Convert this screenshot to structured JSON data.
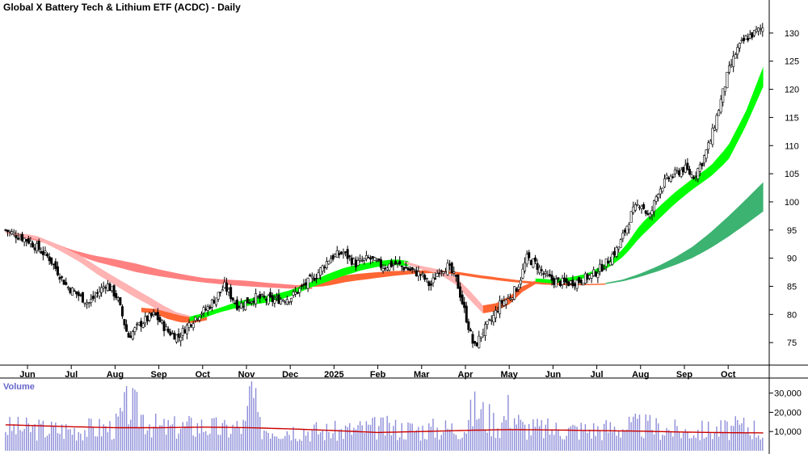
{
  "chart_data": {
    "type": "candlestick",
    "title": "Global X Battery Tech & Lithium ETF (ACDC) - Daily",
    "price_axis": {
      "ticks": [
        75,
        80,
        85,
        90,
        95,
        100,
        105,
        110,
        115,
        120,
        125,
        130
      ],
      "ylim": [
        71,
        133
      ]
    },
    "month_labels": [
      "Jun",
      "Jul",
      "Aug",
      "Sep",
      "Oct",
      "Nov",
      "Dec",
      "2025",
      "Feb",
      "Mar",
      "Apr",
      "May",
      "Jun",
      "Jul",
      "Aug",
      "Sep",
      "Oct"
    ],
    "month_index": [
      0,
      1,
      2,
      3,
      4,
      5,
      6,
      7,
      8,
      9,
      10,
      11,
      12,
      13,
      14,
      15,
      16
    ],
    "close_path": {
      "month_index": [
        -0.5,
        0.05,
        0.5,
        0.9,
        1.4,
        1.8,
        2.05,
        2.3,
        2.6,
        2.9,
        3.2,
        3.45,
        3.65,
        3.9,
        4.1,
        4.3,
        4.5,
        4.8,
        5.2,
        5.6,
        6.0,
        6.3,
        6.6,
        6.9,
        7.2,
        7.5,
        7.8,
        8.1,
        8.4,
        8.7,
        9.0,
        9.2,
        9.4,
        9.6,
        9.8,
        10.0,
        10.2,
        10.4,
        10.6,
        10.8,
        11.0,
        11.2,
        11.4,
        11.6,
        11.8,
        12.0,
        12.3,
        12.6,
        12.9,
        13.2,
        13.5,
        13.8,
        14.0,
        14.2,
        14.4,
        14.6,
        14.8,
        15.0,
        15.2,
        15.4,
        15.6,
        15.8,
        16.0,
        16.2,
        16.4,
        16.6,
        16.8
      ],
      "close": [
        95,
        93,
        90,
        85,
        82,
        85.5,
        83,
        76,
        78.5,
        80,
        77,
        76,
        78,
        80,
        81,
        83,
        85,
        81.5,
        83,
        82.5,
        83,
        85,
        87,
        90,
        91,
        89,
        90,
        88.5,
        89,
        88,
        87,
        85,
        88,
        88.5,
        86,
        80,
        74,
        77,
        79,
        82,
        83,
        85,
        90,
        89,
        87,
        86,
        85.5,
        86,
        87,
        89,
        92,
        98,
        100,
        97,
        102,
        104,
        105,
        106,
        104.5,
        107,
        111,
        117,
        123,
        127,
        129,
        130,
        131
      ]
    },
    "bands": [
      {
        "name": "",
        "color": "#ff8080",
        "month_index": [
          -0.5,
          0.5,
          1.0,
          1.5,
          2.0,
          2.5,
          3.0,
          3.5,
          4.0,
          4.5,
          5.0,
          5.5,
          6.0,
          6.5
        ],
        "upper": [
          95,
          93,
          91.5,
          90.5,
          89.8,
          89,
          88,
          87.2,
          86.5,
          86.2,
          86,
          85.6,
          85.3,
          85
        ],
        "lower": [
          94.5,
          92.5,
          91,
          89.5,
          88.5,
          87.5,
          86.8,
          86.2,
          85.7,
          85.3,
          85,
          84.8,
          84.6,
          84.5
        ]
      },
      {
        "name": "",
        "color": "#ff6633",
        "month_index": [
          6.2,
          6.8,
          7.3,
          7.8,
          8.3,
          8.8,
          9.3,
          9.8,
          10.3,
          10.8,
          11.3,
          11.8,
          12.3,
          12.8,
          13.2
        ],
        "upper": [
          85.2,
          86.3,
          87,
          87.4,
          87.7,
          87.8,
          87.9,
          87.6,
          87,
          86.5,
          86,
          85.7,
          85.5,
          85.4,
          85.5
        ],
        "lower": [
          84.8,
          85,
          85.8,
          86.3,
          86.8,
          87.2,
          87.4,
          87.1,
          86.5,
          86,
          85.6,
          85.3,
          85.2,
          85.2,
          85.3
        ]
      },
      {
        "name": "",
        "color": "#3cb371",
        "month_index": [
          13.2,
          13.6,
          14.0,
          14.4,
          14.8,
          15.2,
          15.6,
          16.0,
          16.4,
          16.8
        ],
        "upper": [
          85.6,
          86.2,
          87.3,
          88.6,
          90.2,
          92.1,
          94.6,
          97.4,
          100.4,
          103.5
        ],
        "lower": [
          85.4,
          85.9,
          86.7,
          87.7,
          88.8,
          90.1,
          91.8,
          93.8,
          96,
          98.3
        ]
      },
      {
        "name": "",
        "color": "#ffb3b3",
        "month_index": [
          -0.5,
          0.2,
          0.7,
          1.2,
          1.6,
          2.0,
          2.4,
          2.8,
          3.1,
          3.4,
          3.7
        ],
        "upper": [
          94.8,
          94,
          92.4,
          90.5,
          88.5,
          86.6,
          84.8,
          83,
          81.6,
          80.4,
          79.8
        ],
        "lower": [
          94.4,
          93.4,
          91.5,
          89.3,
          87.1,
          85.2,
          83.3,
          81.6,
          80.1,
          79.2,
          78.8
        ]
      },
      {
        "name": "",
        "color": "#ff6633",
        "month_index": [
          2.6,
          2.9,
          3.2,
          3.5,
          3.8,
          4.1
        ],
        "upper": [
          81.2,
          81,
          80.4,
          79.8,
          79.4,
          79.6
        ],
        "lower": [
          80.4,
          80.2,
          79.2,
          78.6,
          78.5,
          79
        ]
      },
      {
        "name": "",
        "color": "#00ff00",
        "month_index": [
          3.7,
          4.0,
          4.4,
          4.8,
          5.2,
          5.6,
          6.0,
          6.4,
          6.8,
          7.2,
          7.6,
          8.0,
          8.4,
          8.7
        ],
        "upper": [
          79.6,
          80.2,
          81.2,
          82.3,
          83,
          83.5,
          84.3,
          85.5,
          87,
          88.2,
          89,
          89.5,
          89.8,
          89.5
        ],
        "lower": [
          78.8,
          79.3,
          80.4,
          81.2,
          81.8,
          82.3,
          83.2,
          84.6,
          85.7,
          86.8,
          87.8,
          88.5,
          88.8,
          88.6
        ]
      },
      {
        "name": "",
        "color": "#ffb3b3",
        "month_index": [
          8.6,
          9.0,
          9.4,
          9.8,
          10.1,
          10.4
        ],
        "upper": [
          89.5,
          88.6,
          88,
          86.5,
          84.2,
          81.6
        ],
        "lower": [
          89.1,
          88,
          87.2,
          85.2,
          82.6,
          80.2
        ]
      },
      {
        "name": "",
        "color": "#ff6633",
        "month_index": [
          10.4,
          10.7,
          11.0,
          11.3,
          11.6
        ],
        "upper": [
          81.6,
          82,
          83.2,
          85,
          86
        ],
        "lower": [
          80.2,
          80.6,
          81.8,
          84,
          85.4
        ]
      },
      {
        "name": "",
        "color": "#00ff00",
        "month_index": [
          11.6,
          12.0,
          12.4,
          12.8,
          13.2,
          13.6,
          14.0,
          14.4,
          14.8,
          15.2,
          15.6,
          16.0,
          16.4,
          16.8
        ],
        "upper": [
          86.4,
          86.2,
          86.6,
          87.3,
          89,
          91.6,
          96,
          99,
          101.8,
          104.2,
          106.4,
          110,
          116,
          124
        ],
        "lower": [
          85.8,
          85.5,
          85.9,
          86.6,
          88,
          90.2,
          93.8,
          96.8,
          99.8,
          102.3,
          104.5,
          107.4,
          113.4,
          120.5
        ]
      }
    ],
    "volume": {
      "label": "Volume",
      "ticks": [
        10000,
        20000,
        30000
      ],
      "tick_labels": [
        "10,000",
        "20,000",
        "30,000"
      ],
      "ylim": [
        0,
        37000
      ],
      "profile_month_index": [
        -0.5,
        0.5,
        1.0,
        2.0,
        2.3,
        3.0,
        4.0,
        4.5,
        5.0,
        5.1,
        5.3,
        6.0,
        7.0,
        8.0,
        9.0,
        10.0,
        10.2,
        10.8,
        11.0,
        11.3,
        12.0,
        13.0,
        14.0,
        15.0,
        16.0,
        16.5,
        16.8
      ],
      "profile_typical": [
        12000,
        11000,
        11000,
        12000,
        24000,
        11500,
        13000,
        11000,
        13000,
        34000,
        12000,
        11000,
        10000,
        12000,
        11000,
        12000,
        22000,
        13000,
        22000,
        12000,
        11000,
        11000,
        13000,
        10000,
        11000,
        13000,
        9000
      ],
      "average_month_index": [
        -0.5,
        1.0,
        2.0,
        3.0,
        4.0,
        5.0,
        6.0,
        7.0,
        8.0,
        9.0,
        10.0,
        11.0,
        12.0,
        13.0,
        14.0,
        15.0,
        16.0,
        16.8
      ],
      "average": [
        13500,
        12500,
        12000,
        12000,
        12300,
        12000,
        11400,
        10500,
        9500,
        10000,
        10600,
        11000,
        10800,
        10500,
        10200,
        9700,
        9400,
        9300
      ]
    },
    "colors": {
      "candle_up": "#ffffff",
      "candle_down": "#000000",
      "volume_bar": "#8c8cd9",
      "volume_average": "#cc0000",
      "volume_label": "#6666cc",
      "axis": "#000000"
    },
    "grid": false,
    "legend": "none"
  }
}
